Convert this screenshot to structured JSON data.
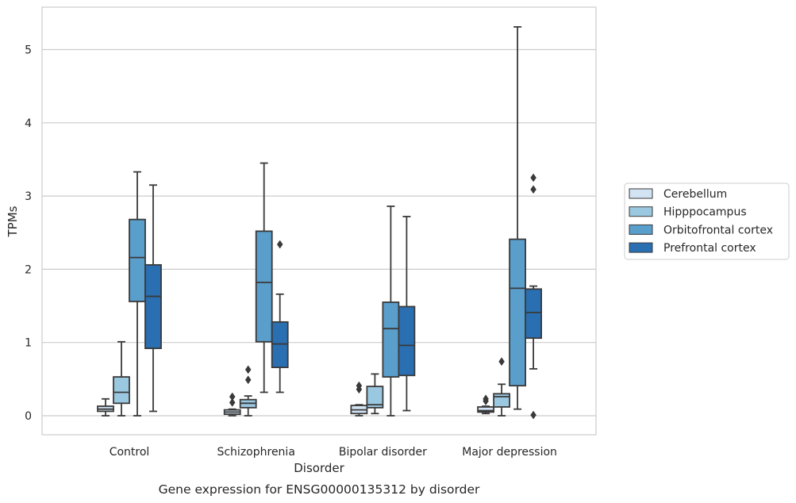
{
  "chart_data": {
    "type": "boxplot",
    "caption": "Gene expression for ENSG00000135312 by disorder",
    "xlabel": "Disorder",
    "ylabel": "TPMs",
    "ylim": [
      -0.25,
      5.6
    ],
    "yticks": [
      "0",
      "1",
      "2",
      "3",
      "4",
      "5"
    ],
    "grid": true,
    "legend_position": "right",
    "categories": [
      "Control",
      "Schizophrenia",
      "Bipolar disorder",
      "Major depression"
    ],
    "series": [
      {
        "name": "Cerebellum",
        "color": "#d2e3f3",
        "boxes": [
          {
            "whislo": 0.0,
            "q1": 0.06,
            "med": 0.09,
            "q3": 0.13,
            "whishi": 0.23,
            "fliers": []
          },
          {
            "whislo": 0.0,
            "q1": 0.02,
            "med": 0.05,
            "q3": 0.08,
            "whishi": 0.09,
            "fliers": [
              0.18,
              0.26
            ]
          },
          {
            "whislo": 0.0,
            "q1": 0.03,
            "med": 0.08,
            "q3": 0.14,
            "whishi": 0.15,
            "fliers": [
              0.36,
              0.41
            ]
          },
          {
            "whislo": 0.03,
            "q1": 0.05,
            "med": 0.07,
            "q3": 0.12,
            "whishi": 0.13,
            "fliers": [
              0.2,
              0.23
            ]
          }
        ]
      },
      {
        "name": "Hipppocampus",
        "color": "#9ac8e0",
        "boxes": [
          {
            "whislo": 0.0,
            "q1": 0.17,
            "med": 0.32,
            "q3": 0.53,
            "whishi": 1.01,
            "fliers": []
          },
          {
            "whislo": 0.0,
            "q1": 0.11,
            "med": 0.17,
            "q3": 0.22,
            "whishi": 0.27,
            "fliers": [
              0.49,
              0.63
            ]
          },
          {
            "whislo": 0.03,
            "q1": 0.11,
            "med": 0.15,
            "q3": 0.4,
            "whishi": 0.57,
            "fliers": []
          },
          {
            "whislo": 0.0,
            "q1": 0.12,
            "med": 0.26,
            "q3": 0.3,
            "whishi": 0.43,
            "fliers": [
              0.74
            ]
          }
        ]
      },
      {
        "name": "Orbitofrontal cortex",
        "color": "#5a9ecc",
        "boxes": [
          {
            "whislo": 0.0,
            "q1": 1.56,
            "med": 2.16,
            "q3": 2.68,
            "whishi": 3.33,
            "fliers": []
          },
          {
            "whislo": 0.32,
            "q1": 1.01,
            "med": 1.82,
            "q3": 2.52,
            "whishi": 3.45,
            "fliers": []
          },
          {
            "whislo": 0.0,
            "q1": 0.53,
            "med": 1.19,
            "q3": 1.55,
            "whishi": 2.86,
            "fliers": []
          },
          {
            "whislo": 0.09,
            "q1": 0.41,
            "med": 1.74,
            "q3": 2.41,
            "whishi": 5.31,
            "fliers": []
          }
        ]
      },
      {
        "name": "Prefrontal cortex",
        "color": "#2a6fb1",
        "boxes": [
          {
            "whislo": 0.06,
            "q1": 0.92,
            "med": 1.63,
            "q3": 2.06,
            "whishi": 3.15,
            "fliers": []
          },
          {
            "whislo": 0.32,
            "q1": 0.66,
            "med": 0.98,
            "q3": 1.28,
            "whishi": 1.66,
            "fliers": [
              2.34
            ]
          },
          {
            "whislo": 0.07,
            "q1": 0.55,
            "med": 0.96,
            "q3": 1.49,
            "whishi": 2.72,
            "fliers": []
          },
          {
            "whislo": 0.64,
            "q1": 1.06,
            "med": 1.41,
            "q3": 1.73,
            "whishi": 1.77,
            "fliers": [
              0.01,
              3.09,
              3.25
            ]
          }
        ]
      }
    ]
  }
}
